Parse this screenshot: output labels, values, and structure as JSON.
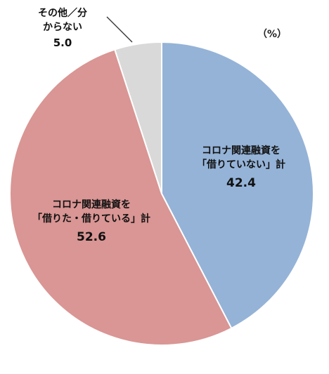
{
  "chart_data": {
    "type": "pie",
    "unit": "（%）",
    "slices": [
      {
        "label_lines": [
          "コロナ関連融資を",
          "「借りていない」計"
        ],
        "value": 42.4,
        "value_text": "42.4",
        "color": "#95b3d7"
      },
      {
        "label_lines": [
          "コロナ関連融資を",
          "「借りた・借りている」計"
        ],
        "value": 52.6,
        "value_text": "52.6",
        "color": "#d99694"
      },
      {
        "label_lines": [
          "その他／分",
          "からない"
        ],
        "value": 5.0,
        "value_text": "5.0",
        "color": "#d9d9d9"
      }
    ]
  }
}
